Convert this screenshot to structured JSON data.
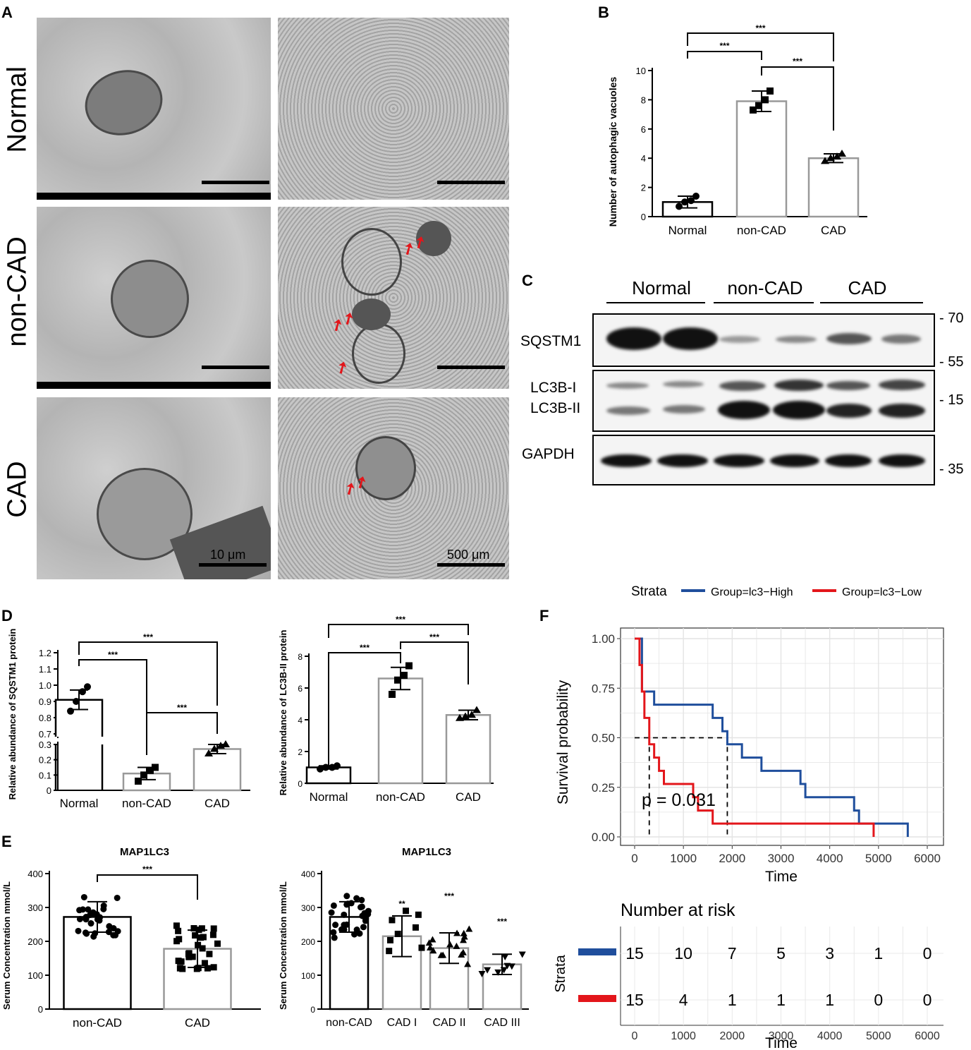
{
  "panels": {
    "A": "A",
    "B": "B",
    "C": "C",
    "D": "D",
    "E": "E",
    "F": "F"
  },
  "panelA": {
    "rows": [
      "Normal",
      "non-CAD",
      "CAD"
    ],
    "scalebars": [
      "10 μm",
      "500 μm"
    ]
  },
  "chart_data": [
    {
      "id": "B",
      "type": "bar",
      "categories": [
        "Normal",
        "non-CAD",
        "CAD"
      ],
      "values": [
        1.0,
        7.9,
        4.0
      ],
      "errors": [
        0.4,
        0.7,
        0.3
      ],
      "points": [
        [
          0.7,
          1.0,
          1.1,
          1.4
        ],
        [
          7.3,
          7.6,
          8.0,
          8.6
        ],
        [
          3.8,
          4.0,
          4.1,
          4.3
        ]
      ],
      "ylabel": "Number of autophagic vacuoles",
      "ylim": [
        0,
        10
      ],
      "yticks": [
        0,
        2,
        4,
        6,
        8,
        10
      ],
      "significance": [
        "***",
        "***",
        "***"
      ]
    },
    {
      "id": "D1",
      "type": "bar",
      "categories": [
        "Normal",
        "non-CAD",
        "CAD"
      ],
      "values": [
        0.91,
        0.11,
        0.27
      ],
      "errors": [
        0.06,
        0.04,
        0.03
      ],
      "points": [
        [
          0.84,
          0.9,
          0.96,
          0.99
        ],
        [
          0.06,
          0.1,
          0.13,
          0.15
        ],
        [
          0.24,
          0.27,
          0.29,
          0.3
        ]
      ],
      "ylabel": "Relative abundance of SQSTM1 protein",
      "yticks_low": [
        "0",
        "0.1",
        "0.2",
        "0.3"
      ],
      "yticks_high": [
        "0.7",
        "0.8",
        "0.9",
        "1.0",
        "1.1",
        "1.2"
      ],
      "significance": [
        "***",
        "***",
        "***"
      ]
    },
    {
      "id": "D2",
      "type": "bar",
      "categories": [
        "Normal",
        "non-CAD",
        "CAD"
      ],
      "values": [
        1.0,
        6.6,
        4.3
      ],
      "errors": [
        0.1,
        0.7,
        0.3
      ],
      "points": [
        [
          0.9,
          1.0,
          1.0,
          1.1
        ],
        [
          5.6,
          6.5,
          6.8,
          7.4
        ],
        [
          4.1,
          4.2,
          4.3,
          4.6
        ]
      ],
      "ylabel": "Relative abundance of LC3B-II protein",
      "ylim": [
        0,
        8
      ],
      "yticks": [
        0,
        2,
        4,
        6,
        8
      ],
      "significance": [
        "***",
        "***",
        "***"
      ]
    },
    {
      "id": "E1",
      "type": "bar",
      "title": "MAP1LC3",
      "categories": [
        "non-CAD",
        "CAD"
      ],
      "values": [
        272,
        178
      ],
      "errors": [
        45,
        55
      ],
      "ylabel": "Serum Concentration mmol/L",
      "ylim": [
        0,
        400
      ],
      "yticks": [
        0,
        100,
        200,
        300,
        400
      ],
      "significance": [
        "***"
      ]
    },
    {
      "id": "E2",
      "type": "bar",
      "title": "MAP1LC3",
      "categories": [
        "non-CAD",
        "CAD I",
        "CAD II",
        "CAD III"
      ],
      "values": [
        272,
        215,
        180,
        132
      ],
      "errors": [
        45,
        60,
        45,
        30
      ],
      "ylabel": "Serum Concentration mmol/L",
      "ylim": [
        0,
        400
      ],
      "yticks": [
        0,
        100,
        200,
        300,
        400
      ],
      "significance": [
        "",
        "**",
        "***",
        "***"
      ]
    },
    {
      "id": "F",
      "type": "line",
      "legend_title": "Strata",
      "legend": [
        "Group=lc3−High",
        "Group=lc3−Low"
      ],
      "colors": [
        "#1f4e9c",
        "#e3161b"
      ],
      "xlabel": "Time",
      "ylabel": "Survival probability",
      "xlim": [
        0,
        6000
      ],
      "xticks": [
        "0",
        "1000",
        "2000",
        "3000",
        "4000",
        "5000",
        "6000"
      ],
      "ylim": [
        0,
        1
      ],
      "yticks": [
        "0.00",
        "0.25",
        "0.50",
        "0.75",
        "1.00"
      ],
      "pvalue": "p = 0.031",
      "series": [
        {
          "name": "Group=lc3−High",
          "steps": [
            [
              0,
              1.0
            ],
            [
              150,
              0.733
            ],
            [
              400,
              0.667
            ],
            [
              1600,
              0.6
            ],
            [
              1800,
              0.533
            ],
            [
              1900,
              0.467
            ],
            [
              2200,
              0.4
            ],
            [
              2600,
              0.333
            ],
            [
              3400,
              0.267
            ],
            [
              3500,
              0.2
            ],
            [
              3800,
              0.2
            ],
            [
              4200,
              0.2
            ],
            [
              4500,
              0.133
            ],
            [
              4600,
              0.067
            ],
            [
              5600,
              0.0
            ]
          ]
        },
        {
          "name": "Group=lc3−Low",
          "steps": [
            [
              0,
              1.0
            ],
            [
              100,
              0.867
            ],
            [
              150,
              0.733
            ],
            [
              200,
              0.6
            ],
            [
              300,
              0.467
            ],
            [
              400,
              0.4
            ],
            [
              500,
              0.333
            ],
            [
              600,
              0.267
            ],
            [
              1200,
              0.2
            ],
            [
              1300,
              0.133
            ],
            [
              1600,
              0.067
            ],
            [
              4900,
              0.0
            ]
          ]
        }
      ],
      "risk_table": {
        "title": "Number at risk",
        "ylabel": "Strata",
        "rows": [
          [
            "15",
            "10",
            "7",
            "5",
            "3",
            "1",
            "0"
          ],
          [
            "15",
            "4",
            "1",
            "1",
            "1",
            "0",
            "0"
          ]
        ],
        "xlabel": "Time"
      }
    }
  ],
  "blot": {
    "groups": [
      "Normal",
      "non-CAD",
      "CAD"
    ],
    "proteins": [
      "SQSTM1",
      "LC3B-I",
      "LC3B-II",
      "GAPDH"
    ],
    "mw": [
      "- 70",
      "- 55",
      "- 15",
      "- 35"
    ]
  },
  "colors": {
    "bar_normal": "#000000",
    "bar_other": "#999999",
    "km_high": "#1f4e9c",
    "km_low": "#e3161b"
  }
}
